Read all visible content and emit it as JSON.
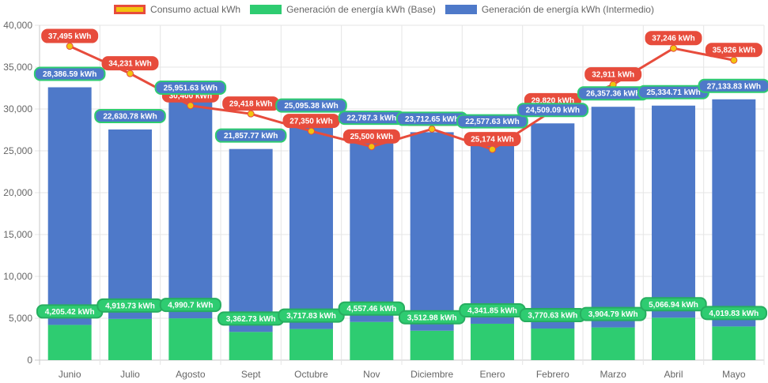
{
  "chart_data": {
    "type": "bar",
    "stacked": true,
    "title": "",
    "xlabel": "",
    "ylabel": "",
    "ylim": [
      0,
      40000
    ],
    "y_ticks": [
      0,
      5000,
      10000,
      15000,
      20000,
      25000,
      30000,
      35000,
      40000
    ],
    "y_tick_labels": [
      "0",
      "5,000",
      "10,000",
      "15,000",
      "20,000",
      "25,000",
      "30,000",
      "35,000",
      "40,000"
    ],
    "grid": true,
    "legend_position": "top-center",
    "categories": [
      "Junio",
      "Julio",
      "Agosto",
      "Sept",
      "Octubre",
      "Nov",
      "Diciembre",
      "Enero",
      "Febrero",
      "Marzo",
      "Abril",
      "Mayo"
    ],
    "series": [
      {
        "name": "Consumo actual kWh",
        "type": "line",
        "color": "#e74c3c",
        "point_color": "#f1c40f",
        "label_bg": "#e74c3c",
        "label_border": "#e74c3c",
        "values": [
          37495,
          34231,
          30400,
          29418,
          27350,
          25500,
          27600,
          25174,
          29820,
          32911,
          37246,
          35826
        ],
        "labels": [
          "37,495 kWh",
          "34,231 kWh",
          "30,400 kWh",
          "29,418 kWh",
          "27,350 kWh",
          "25,500 kWh",
          "27,600 kWh",
          "25,174 kWh",
          "29,820 kWh",
          "32,911 kWh",
          "37,246 kWh",
          "35,826 kWh"
        ]
      },
      {
        "name": "Generación de energía kWh (Base)",
        "type": "bar",
        "color": "#2ecc71",
        "label_bg": "#2ecc71",
        "label_border": "#27ae60",
        "values": [
          4205.42,
          4919.73,
          4990.7,
          3362.73,
          3717.83,
          4557.46,
          3512.98,
          4341.85,
          3770.63,
          3904.79,
          5066.94,
          4019.83
        ],
        "labels": [
          "4,205.42 kWh",
          "4,919.73 kWh",
          "4,990.7 kWh",
          "3,362.73 kWh",
          "3,717.83 kWh",
          "4,557.46 kWh",
          "3,512.98 kWh",
          "4,341.85 kWh",
          "3,770.63 kWh",
          "3,904.79 kWh",
          "5,066.94 kWh",
          "4,019.83 kWh"
        ]
      },
      {
        "name": "Generación de energía kWh (Intermedio)",
        "type": "bar",
        "color": "#4e79c9",
        "label_bg": "#4e79c9",
        "label_border": "#2ecc71",
        "values": [
          28386.59,
          22630.78,
          25951.63,
          21857.77,
          25095.38,
          22787.3,
          23712.65,
          22577.63,
          24509.09,
          26357.36,
          25334.71,
          27133.83
        ],
        "labels": [
          "28,386.59 kWh",
          "22,630.78 kWh",
          "25,951.63 kWh",
          "21,857.77 kWh",
          "25,095.38 kWh",
          "22,787.3 kWh",
          "23,712.65 kWh",
          "22,577.63 kWh",
          "24,509.09 kWh",
          "26,357.36 kWh",
          "25,334.71 kWh",
          "27,133.83 kWh"
        ]
      }
    ]
  },
  "legend": {
    "items": [
      {
        "label": "Consumo actual kWh",
        "fill": "#f1c40f",
        "border": "#e74c3c"
      },
      {
        "label": "Generación de energía kWh (Base)",
        "fill": "#2ecc71",
        "border": "#2ecc71"
      },
      {
        "label": "Generación de energía kWh (Intermedio)",
        "fill": "#4e79c9",
        "border": "#4e79c9"
      }
    ]
  }
}
